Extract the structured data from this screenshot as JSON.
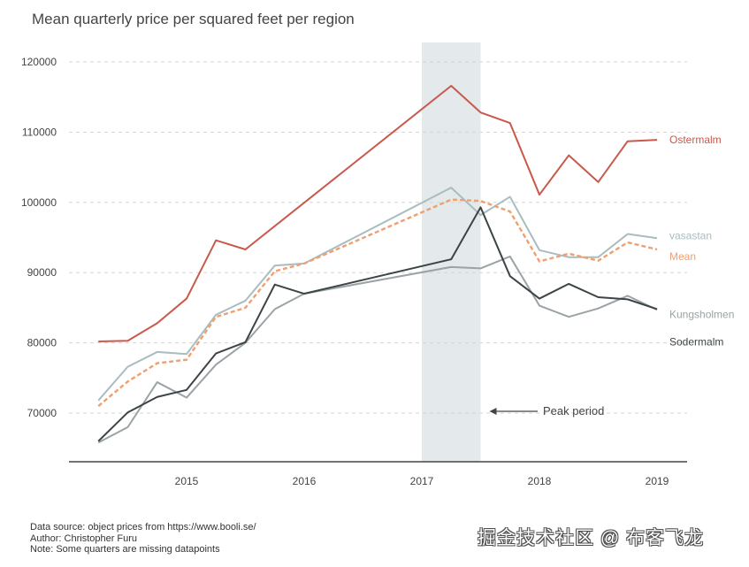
{
  "chart_data": {
    "type": "line",
    "title": "Mean quarterly price per squared feet per region",
    "xlabel": "",
    "ylabel": "",
    "xlim": [
      2014.25,
      2019.25
    ],
    "ylim": [
      64000,
      126000
    ],
    "x_ticks": [
      2015,
      2016,
      2017,
      2018,
      2019
    ],
    "x_tick_labels": [
      "2015",
      "2016",
      "2017",
      "2018",
      "2019"
    ],
    "y_ticks": [
      70000,
      80000,
      90000,
      100000,
      110000,
      120000
    ],
    "y_tick_labels": [
      "70000",
      "80000",
      "90000",
      "100000",
      "110000",
      "120000"
    ],
    "grid": "horizontal dashed",
    "legend": "inline labels at right end of lines",
    "x": [
      2014.25,
      2014.5,
      2014.75,
      2015.0,
      2015.25,
      2015.5,
      2015.75,
      2016.0,
      2017.25,
      2017.5,
      2017.75,
      2018.0,
      2018.25,
      2018.5,
      2018.75,
      2019.0
    ],
    "series": [
      {
        "name": "Ostermalm",
        "color": "#c8594b",
        "style": "solid",
        "values": [
          80200,
          80300,
          82800,
          86300,
          94600,
          93300,
          null,
          null,
          116600,
          112800,
          111300,
          101100,
          106700,
          102900,
          108700,
          108900
        ]
      },
      {
        "name": "vasastan",
        "color": "#a9bcbf",
        "style": "solid",
        "values": [
          71800,
          76600,
          78700,
          78400,
          84000,
          86000,
          91000,
          91300,
          102100,
          98200,
          100800,
          93200,
          92200,
          92200,
          95500,
          94900
        ]
      },
      {
        "name": "Mean",
        "color": "#f0a070",
        "style": "dashed",
        "values": [
          71000,
          74500,
          77100,
          77600,
          83700,
          85000,
          90200,
          91300,
          100400,
          100200,
          98700,
          91600,
          92700,
          91700,
          94300,
          93300
        ]
      },
      {
        "name": "Kungsholmen",
        "color": "#9aa3a5",
        "style": "solid",
        "values": [
          65800,
          68000,
          74400,
          72200,
          76900,
          80000,
          84800,
          87000,
          90800,
          90600,
          92300,
          85300,
          83700,
          84900,
          86700,
          84700
        ]
      },
      {
        "name": "Sodermalm",
        "color": "#3d4446",
        "style": "solid",
        "values": [
          66000,
          70100,
          72300,
          73300,
          78500,
          80100,
          88300,
          87000,
          91900,
          99300,
          89500,
          86300,
          88400,
          86500,
          86200,
          84800
        ]
      }
    ],
    "ostermalm_note": "Ostermalm line goes directly from 2015.5 to 2017.25",
    "highlight_region": {
      "x_start": 2017.0,
      "x_end": 2017.5,
      "color": "#e4e9ec"
    },
    "annotations": [
      {
        "text": "Peak period",
        "arrow_to_x": 2017.5,
        "y": 70000
      }
    ]
  },
  "footer": {
    "source": "Data source: object prices from https://www.booli.se/",
    "author": "Author: Christopher Furu",
    "note": "Note: Some quarters are missing datapoints"
  },
  "watermark": "掘金技术社区 @ 布客飞龙"
}
